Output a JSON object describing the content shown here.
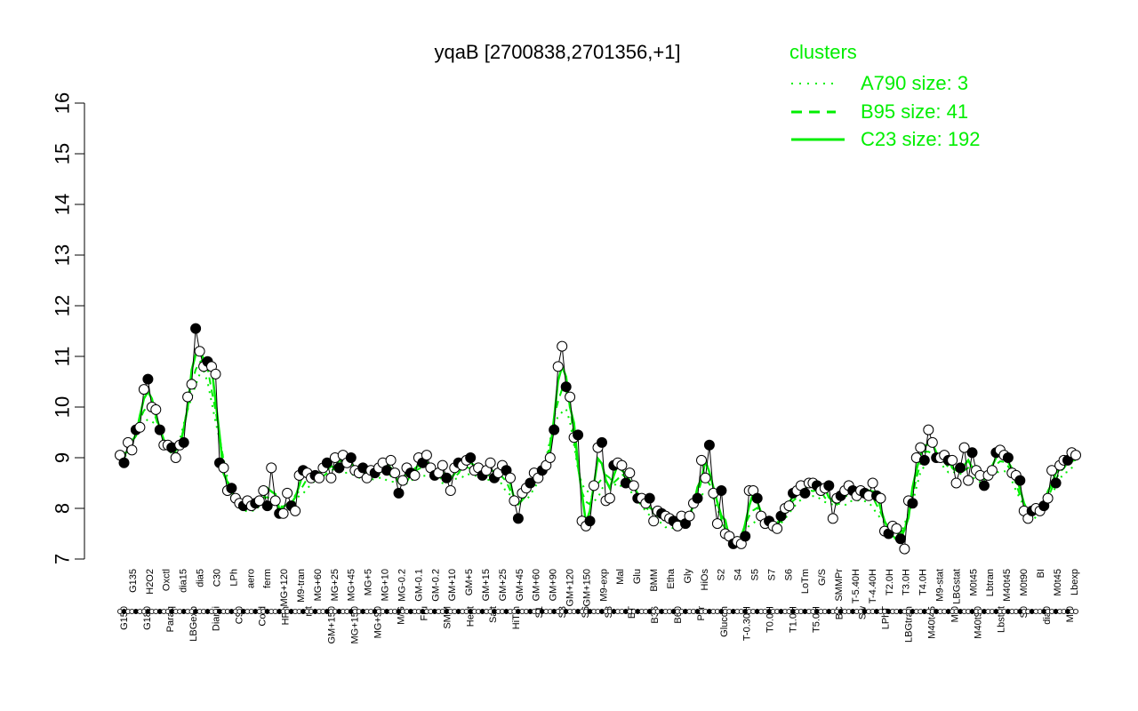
{
  "chart_data": {
    "type": "line",
    "title": "yqaB [2700838,2701356,+1]",
    "xlabel": "",
    "ylabel": "",
    "ylim": [
      7,
      16
    ],
    "yticks": [
      7,
      8,
      9,
      10,
      11,
      12,
      13,
      14,
      15,
      16
    ],
    "grid": false,
    "legend_position": "top-right",
    "legend": {
      "title": "clusters",
      "entries": [
        {
          "label": "A790 size: 3",
          "style": "dotted"
        },
        {
          "label": "B95 size: 41",
          "style": "dashed"
        },
        {
          "label": "C23 size: 192",
          "style": "solid"
        }
      ]
    },
    "colors": {
      "cluster_lines": "#00ee00",
      "points": "#ffffff",
      "highlight_points": "#000000",
      "profile_line": "#000000"
    },
    "xtick_labels_top": [
      "G135",
      "H2O2",
      "Oxctl",
      "dia15",
      "dia5",
      "C30",
      "LPh",
      "aero",
      "ferm",
      "MG+120",
      "M9-tran",
      "MG+60",
      "MG+25",
      "MG+45",
      "MG+5",
      "MG+10",
      "MG-0.2",
      "GM-0.1",
      "GM-0.2",
      "GM+10",
      "GM+5",
      "GM+15",
      "GM+25",
      "GM+45",
      "GM+60",
      "GM+90",
      "GM+120",
      "GM+150",
      "M9-exp",
      "Mal",
      "Glu",
      "BMM",
      "Etha",
      "Gly",
      "HiOs",
      "S2",
      "S4",
      "S5",
      "S7",
      "S6",
      "LoTm",
      "G/S",
      "SMMPr",
      "T-5.40H",
      "T-4.40H",
      "T2.0H",
      "T3.0H",
      "T4.0H",
      "M9-stat",
      "LBGstat",
      "M0t45",
      "Lbtran",
      "M40t45",
      "M0t90",
      "BI",
      "M0t45",
      "Lbexp"
    ],
    "xtick_labels_bottom": [
      "G150",
      "G180",
      "Paraq",
      "LBGexp",
      "Diami",
      "C90",
      "Cold",
      "HPh",
      "nit",
      "GM+150",
      "MG+150",
      "MG+90",
      "M/G",
      "Fru",
      "SMM",
      "Heat",
      "Salt",
      "HiTm",
      "S1",
      "S3",
      "S6",
      "S8",
      "BT",
      "B36",
      "B60",
      "Pyr",
      "Glucon",
      "T-0.30H",
      "T0.0H",
      "T1.0H",
      "T5.0H",
      "BC",
      "Sw",
      "LPhT",
      "LBGtran",
      "M40t45",
      "Mt0",
      "M40t90",
      "Lbstat",
      "S0",
      "dia0",
      "Mt0"
    ],
    "series": [
      {
        "values": [
          9.05,
          8.9,
          9.3,
          9.15,
          9.55,
          9.6,
          10.35,
          10.55,
          10.0,
          9.95,
          9.55,
          9.25,
          9.25,
          9.2,
          9.0,
          9.25,
          9.3,
          10.2,
          10.45,
          11.55,
          11.1,
          10.8,
          10.9,
          10.8,
          10.65,
          8.9,
          8.8,
          8.35,
          8.4,
          8.2,
          8.1,
          8.05,
          8.15,
          8.05,
          8.1,
          8.15,
          8.35,
          8.05,
          8.8,
          8.15,
          7.9,
          7.9,
          8.3,
          8.05,
          7.95,
          8.65,
          8.75,
          8.7,
          8.6,
          8.65,
          8.6,
          8.8,
          8.9,
          8.6,
          9.0,
          8.8,
          9.05,
          8.9,
          9.0,
          8.75,
          8.7,
          8.8,
          8.6,
          8.75,
          8.7,
          8.8,
          8.9,
          8.75,
          8.95,
          8.7,
          8.3,
          8.55,
          8.8,
          8.7,
          8.65,
          9.0,
          8.9,
          9.05,
          8.8,
          8.65,
          8.7,
          8.85,
          8.6,
          8.35,
          8.8,
          8.9,
          8.85,
          8.95,
          9.0,
          8.75,
          8.8,
          8.65,
          8.75,
          8.9,
          8.6,
          8.7,
          8.85,
          8.75,
          8.6,
          8.15,
          7.8,
          8.3,
          8.4,
          8.5,
          8.7,
          8.6,
          8.75,
          8.85,
          9.0,
          9.55,
          10.8,
          11.2,
          10.4,
          10.2,
          9.4,
          9.45,
          7.75,
          7.65,
          7.75,
          8.45,
          9.2,
          9.3,
          8.15,
          8.2,
          8.85,
          8.9,
          8.85,
          8.5,
          8.7,
          8.45,
          8.2,
          8.2,
          8.1,
          8.2,
          7.75,
          7.95,
          7.9,
          7.85,
          7.8,
          7.75,
          7.65,
          7.85,
          7.7,
          7.85,
          8.1,
          8.2,
          8.95,
          8.6,
          9.25,
          8.3,
          7.7,
          8.35,
          7.5,
          7.45,
          7.3,
          7.35,
          7.3,
          7.45,
          8.35,
          8.35,
          8.2,
          7.85,
          7.7,
          7.75,
          7.65,
          7.6,
          7.85,
          8.0,
          8.05,
          8.3,
          8.35,
          8.45,
          8.3,
          8.5,
          8.5,
          8.45,
          8.35,
          8.4,
          8.45,
          7.8,
          8.2,
          8.25,
          8.35,
          8.45,
          8.35,
          8.25,
          8.35,
          8.3,
          8.25,
          8.5,
          8.25,
          8.2,
          7.55,
          7.5,
          7.65,
          7.6,
          7.4,
          7.2,
          8.15,
          8.1,
          9.0,
          9.2,
          8.95,
          9.55,
          9.3,
          9.0,
          9.0,
          9.05,
          8.95,
          8.95,
          8.5,
          8.8,
          9.2,
          8.55,
          9.1,
          8.75,
          8.65,
          8.45,
          8.65,
          8.75,
          9.1,
          9.15,
          9.05,
          9.0,
          8.7,
          8.65,
          8.55,
          7.95,
          7.8,
          7.95,
          8.0,
          7.95,
          8.05,
          8.2,
          8.75,
          8.5,
          8.85,
          8.95,
          8.95,
          9.1,
          9.05
        ]
      }
    ]
  }
}
